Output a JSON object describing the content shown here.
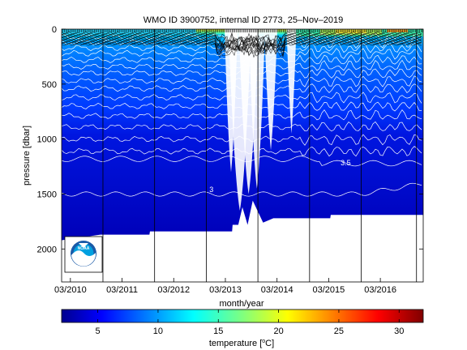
{
  "chart_data": {
    "type": "heatmap",
    "title": "WMO ID 3900752, internal ID 2773, 25–Nov–2019",
    "xlabel": "month/year",
    "ylabel": "pressure [dbar]",
    "x_tick_labels": [
      "03/2010",
      "03/2011",
      "03/2012",
      "03/2013",
      "03/2014",
      "03/2015",
      "03/2016"
    ],
    "x_ticks_year": [
      2010.17,
      2011.17,
      2012.17,
      2013.17,
      2014.17,
      2015.17,
      2016.17
    ],
    "xlim": [
      2010.0,
      2017.0
    ],
    "y_ticks": [
      0,
      500,
      1000,
      1500,
      2000
    ],
    "ylim": [
      2300,
      0
    ],
    "y_reversed": true,
    "colorbar": {
      "label": "temperature [°C]",
      "range": [
        2,
        32
      ],
      "ticks": [
        5,
        10,
        15,
        20,
        25,
        30
      ],
      "colormap": "jet"
    },
    "profile_depth_dbar": [
      [
        2010.0,
        1920
      ],
      [
        2010.75,
        1870
      ],
      [
        2011.7,
        1870
      ],
      [
        2011.71,
        1840
      ],
      [
        2013.3,
        1840
      ],
      [
        2013.31,
        1780
      ],
      [
        2013.42,
        1780
      ],
      [
        2013.5,
        1620
      ],
      [
        2013.6,
        1780
      ],
      [
        2013.7,
        1560
      ],
      [
        2013.9,
        1760
      ],
      [
        2014.1,
        1720
      ],
      [
        2015.2,
        1720
      ],
      [
        2015.21,
        1690
      ],
      [
        2017.0,
        1690
      ]
    ],
    "isotherm_labels": [
      {
        "label": "3.5",
        "year": 2015.5,
        "dbar": 1240
      },
      {
        "label": "3",
        "year": 2012.9,
        "dbar": 1480
      }
    ],
    "logo": "NOAA"
  }
}
